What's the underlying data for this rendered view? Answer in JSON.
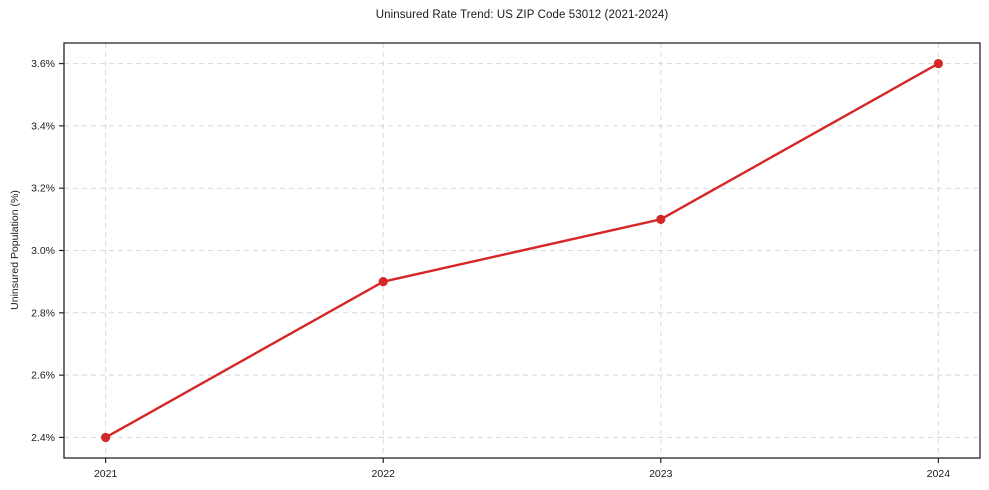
{
  "chart_data": {
    "type": "line",
    "title": "Uninsured Rate Trend: US ZIP Code 53012 (2021-2024)",
    "xlabel": "",
    "ylabel": "Uninsured Population (%)",
    "x": [
      2021,
      2022,
      2023,
      2024
    ],
    "x_tick_labels": [
      "2021",
      "2022",
      "2023",
      "2024"
    ],
    "values": [
      2.4,
      2.9,
      3.1,
      3.6
    ],
    "y_ticks": [
      2.4,
      2.6,
      2.8,
      3.0,
      3.2,
      3.4,
      3.6
    ],
    "y_tick_labels": [
      "2.4%",
      "2.6%",
      "2.8%",
      "3.0%",
      "3.2%",
      "3.4%",
      "3.6%"
    ],
    "xlim": [
      2020.85,
      2024.15
    ],
    "ylim": [
      2.334,
      3.666
    ],
    "grid": true,
    "grid_style": "dashed",
    "legend": "none",
    "marker": "circle",
    "colors": {
      "line": "#d62728",
      "marker": "#d62728",
      "grid": "#d8d8d8",
      "spine": "#262626",
      "text": "#1a1a1a",
      "background": "#ffffff"
    }
  }
}
